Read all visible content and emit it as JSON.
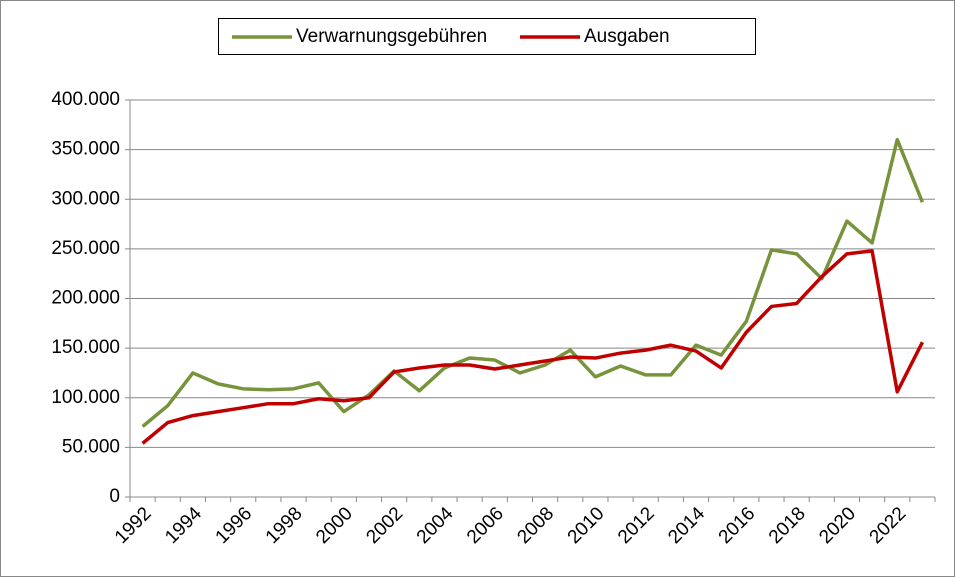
{
  "chart_data": {
    "type": "line",
    "categories": [
      "1992",
      null,
      "1994",
      null,
      "1996",
      null,
      "1998",
      null,
      "2000",
      null,
      "2002",
      null,
      "2004",
      null,
      "2006",
      null,
      "2008",
      null,
      "2010",
      null,
      "2012",
      null,
      "2014",
      null,
      "2016",
      null,
      "2018",
      null,
      "2020",
      null,
      "2022",
      null
    ],
    "series": [
      {
        "name": "Verwarnungsgebühren",
        "color": "#77933c",
        "values": [
          71000,
          92000,
          125000,
          114000,
          109000,
          108000,
          109000,
          115000,
          86000,
          103000,
          127000,
          107000,
          130000,
          140000,
          138000,
          125000,
          133000,
          148000,
          121000,
          132000,
          123000,
          123000,
          153000,
          143000,
          177000,
          249000,
          245000,
          220000,
          278000,
          256000,
          360000,
          297000
        ]
      },
      {
        "name": "Ausgaben",
        "color": "#c00000",
        "values": [
          54000,
          75000,
          82000,
          86000,
          90000,
          94000,
          94000,
          99000,
          97000,
          100000,
          126000,
          130000,
          133000,
          133000,
          129000,
          133000,
          137000,
          141000,
          140000,
          145000,
          148000,
          153000,
          147000,
          130000,
          166000,
          192000,
          195000,
          222000,
          245000,
          248000,
          106000,
          156000
        ]
      }
    ],
    "ylim": [
      0,
      400000
    ],
    "yticks": [
      0,
      {
        "value": 50000,
        "label": "50.000"
      },
      {
        "value": 100000,
        "label": "100.000"
      },
      {
        "value": 150000,
        "label": "150.000"
      },
      {
        "value": 200000,
        "label": "200.000"
      },
      {
        "value": 250000,
        "label": "250.000"
      },
      {
        "value": 300000,
        "label": "300.000"
      },
      {
        "value": 350000,
        "label": "350.000"
      },
      {
        "value": 400000,
        "label": "400.000"
      }
    ],
    "grid": true,
    "legend": "top"
  }
}
